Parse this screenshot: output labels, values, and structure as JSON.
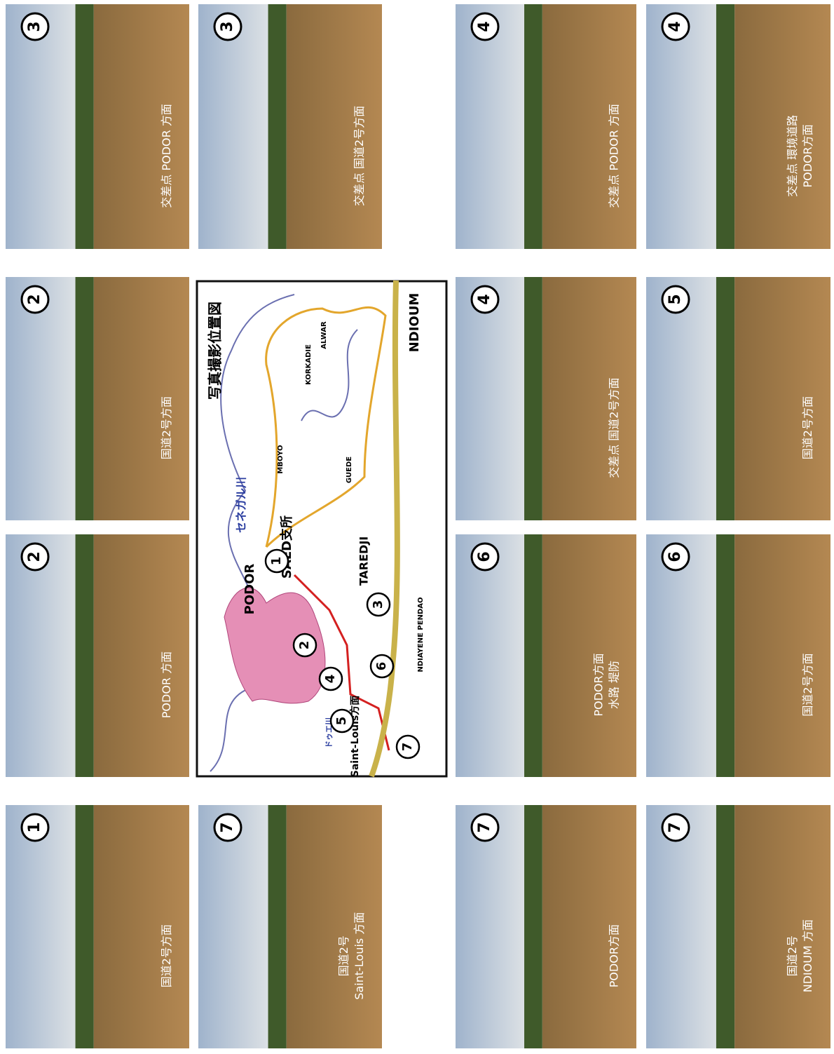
{
  "photos": [
    {
      "number": "3",
      "caption": [
        "交差点 PODOR 方面"
      ]
    },
    {
      "number": "2",
      "caption": [
        "国道2号方面"
      ]
    },
    {
      "number": "2",
      "caption": [
        "PODOR 方面"
      ]
    },
    {
      "number": "1",
      "caption": [
        "国道2号方面"
      ]
    },
    {
      "number": "3",
      "caption": [
        "交差点 国道2号方面"
      ]
    },
    {
      "number": "7",
      "caption": [
        "国道2号",
        "Saint-Louis 方面"
      ]
    },
    {
      "number": "4",
      "caption": [
        "交差点 PODOR 方面"
      ]
    },
    {
      "number": "4",
      "caption": [
        "交差点 国道2号方面"
      ]
    },
    {
      "number": "6",
      "caption": [
        "PODOR方面",
        "水路 堤防"
      ]
    },
    {
      "number": "7",
      "caption": [
        "PODOR方面"
      ]
    },
    {
      "number": "4",
      "caption": [
        "交差点 環境道路",
        "PODOR方面"
      ]
    },
    {
      "number": "5",
      "caption": [
        "国道2号方面"
      ]
    },
    {
      "number": "6",
      "caption": [
        "国道2号方面"
      ]
    },
    {
      "number": "7",
      "caption": [
        "国道2号",
        "NDIOUM 方面"
      ]
    }
  ],
  "map": {
    "title": "写真撮影位置図",
    "labels": [
      "セネガル川",
      "PODOR",
      "SAED支所",
      "TAREDJI",
      "MBOYO",
      "KORKADIE",
      "ALWAR",
      "GUEDE",
      "NDIOUM",
      "NDIAYENE PENDAO",
      "Saint-Louis方面",
      "ドゥエ川"
    ],
    "markers": [
      "1",
      "2",
      "3",
      "4",
      "5",
      "6",
      "7"
    ]
  }
}
